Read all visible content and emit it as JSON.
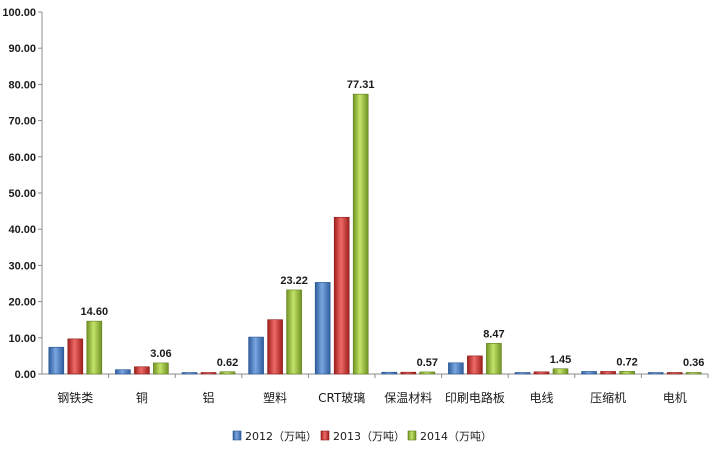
{
  "chart_data": {
    "type": "bar",
    "title": "",
    "xlabel": "",
    "ylabel": "",
    "ylim": [
      0,
      100
    ],
    "yticks": [
      "0.00",
      "10.00",
      "20.00",
      "30.00",
      "40.00",
      "50.00",
      "60.00",
      "70.00",
      "80.00",
      "90.00",
      "100.00"
    ],
    "categories": [
      "钢铁类",
      "铜",
      "铝",
      "塑料",
      "CRT玻璃",
      "保温材料",
      "印刷电路板",
      "电线",
      "压缩机",
      "电机"
    ],
    "series": [
      {
        "name": "2012（万吨）",
        "color": "#4a7fc9",
        "values": [
          7.4,
          1.2,
          0.3,
          10.2,
          25.3,
          0.5,
          3.1,
          0.3,
          0.7,
          0.3
        ]
      },
      {
        "name": "2013（万吨）",
        "color": "#cc3b38",
        "values": [
          9.7,
          2.0,
          0.4,
          15.0,
          43.3,
          0.5,
          5.0,
          0.6,
          0.7,
          0.3
        ]
      },
      {
        "name": "2014（万吨）",
        "color": "#9dc23b",
        "values": [
          14.6,
          3.06,
          0.62,
          23.22,
          77.31,
          0.57,
          8.47,
          1.45,
          0.72,
          0.36
        ]
      }
    ],
    "data_labels": [
      "14.60",
      "3.06",
      "0.62",
      "23.22",
      "77.31",
      "0.57",
      "8.47",
      "1.45",
      "0.72",
      "0.36"
    ],
    "grid": false,
    "legend_position": "bottom"
  }
}
